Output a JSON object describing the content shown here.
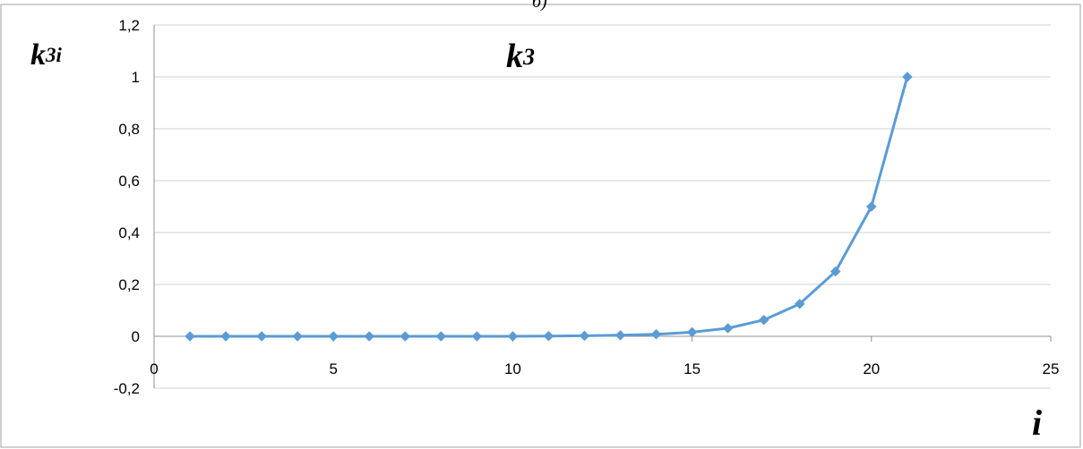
{
  "top_caption": "б)",
  "chart_data": {
    "type": "line",
    "title": "k3",
    "xlabel": "i",
    "ylabel": {
      "main": "k",
      "sub": "3i"
    },
    "title_parts": {
      "main": "k",
      "sub": "3"
    },
    "xlim": [
      0,
      25
    ],
    "ylim": [
      -0.2,
      1.2
    ],
    "x_ticks": [
      "0",
      "5",
      "10",
      "15",
      "20",
      "25"
    ],
    "y_ticks": [
      "-0,2",
      "0",
      "0,2",
      "0,4",
      "0,6",
      "0,8",
      "1",
      "1,2"
    ],
    "grid": "horizontal",
    "series": [
      {
        "color": "#5b9bd5",
        "marker": "diamond",
        "x": [
          1,
          2,
          3,
          4,
          5,
          6,
          7,
          8,
          9,
          10,
          11,
          12,
          13,
          14,
          15,
          16,
          17,
          18,
          19,
          20,
          21
        ],
        "values": [
          0,
          0,
          0,
          0,
          0,
          0,
          0,
          0,
          0,
          0,
          0.001,
          0.002,
          0.004,
          0.008,
          0.016,
          0.031,
          0.063,
          0.125,
          0.25,
          0.5,
          1
        ]
      }
    ]
  }
}
